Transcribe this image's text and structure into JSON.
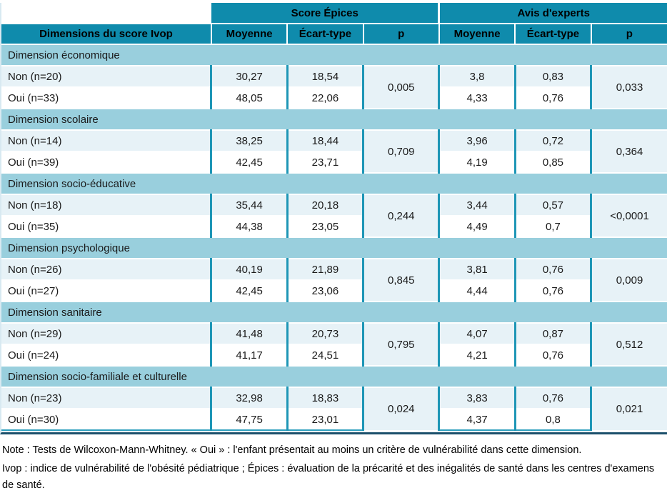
{
  "table": {
    "col_groups": {
      "epices": "Score Épices",
      "avis": "Avis d'experts"
    },
    "headers": {
      "dimension": "Dimensions du score Ivop",
      "moyenne": "Moyenne",
      "ecart_type": "Écart-type",
      "p": "p"
    },
    "sections": [
      {
        "label": "Dimension économique",
        "epices_p": "0,005",
        "avis_p": "0,033",
        "rows": [
          {
            "label": "Non (n=20)",
            "epices_moyenne": "30,27",
            "epices_ecart": "18,54",
            "avis_moyenne": "3,8",
            "avis_ecart": "0,83"
          },
          {
            "label": "Oui (n=33)",
            "epices_moyenne": "48,05",
            "epices_ecart": "22,06",
            "avis_moyenne": "4,33",
            "avis_ecart": "0,76"
          }
        ]
      },
      {
        "label": "Dimension scolaire",
        "epices_p": "0,709",
        "avis_p": "0,364",
        "rows": [
          {
            "label": "Non (n=14)",
            "epices_moyenne": "38,25",
            "epices_ecart": "18,44",
            "avis_moyenne": "3,96",
            "avis_ecart": "0,72"
          },
          {
            "label": "Oui (n=39)",
            "epices_moyenne": "42,45",
            "epices_ecart": "23,71",
            "avis_moyenne": "4,19",
            "avis_ecart": "0,85"
          }
        ]
      },
      {
        "label": "Dimension socio-éducative",
        "epices_p": "0,244",
        "avis_p": "<0,0001",
        "rows": [
          {
            "label": "Non (n=18)",
            "epices_moyenne": "35,44",
            "epices_ecart": "20,18",
            "avis_moyenne": "3,44",
            "avis_ecart": "0,57"
          },
          {
            "label": "Oui (n=35)",
            "epices_moyenne": "44,38",
            "epices_ecart": "23,05",
            "avis_moyenne": "4,49",
            "avis_ecart": "0,7"
          }
        ]
      },
      {
        "label": "Dimension psychologique",
        "epices_p": "0,845",
        "avis_p": "0,009",
        "rows": [
          {
            "label": "Non (n=26)",
            "epices_moyenne": "40,19",
            "epices_ecart": "21,89",
            "avis_moyenne": "3,81",
            "avis_ecart": "0,76"
          },
          {
            "label": "Oui (n=27)",
            "epices_moyenne": "42,45",
            "epices_ecart": "23,06",
            "avis_moyenne": "4,44",
            "avis_ecart": "0,76"
          }
        ]
      },
      {
        "label": "Dimension sanitaire",
        "epices_p": "0,795",
        "avis_p": "0,512",
        "rows": [
          {
            "label": "Non (n=29)",
            "epices_moyenne": "41,48",
            "epices_ecart": "20,73",
            "avis_moyenne": "4,07",
            "avis_ecart": "0,87"
          },
          {
            "label": "Oui (n=24)",
            "epices_moyenne": "41,17",
            "epices_ecart": "24,51",
            "avis_moyenne": "4,21",
            "avis_ecart": "0,76"
          }
        ]
      },
      {
        "label": "Dimension socio-familiale et culturelle",
        "epices_p": "0,024",
        "avis_p": "0,021",
        "rows": [
          {
            "label": "Non (n=23)",
            "epices_moyenne": "32,98",
            "epices_ecart": "18,83",
            "avis_moyenne": "3,83",
            "avis_ecart": "0,76"
          },
          {
            "label": "Oui (n=30)",
            "epices_moyenne": "47,75",
            "epices_ecart": "23,01",
            "avis_moyenne": "4,37",
            "avis_ecart": "0,8"
          }
        ]
      }
    ],
    "notes": [
      "Note : Tests de Wilcoxon-Mann-Whitney. « Oui » : l'enfant présentait au moins un critère de vulnérabilité dans cette dimension.",
      "Ivop : indice de vulnérabilité de l'obésité pédiatrique ; Épices : évaluation de la précarité et des inégalités de santé dans les centres d'examens de santé."
    ]
  },
  "colors": {
    "header_teal": "#0f8bac",
    "section_band": "#99cfdd",
    "row_non_bg": "#e7f2f7",
    "row_oui_bg": "#ffffff",
    "p_cell_bg": "#e0eef5",
    "grid_teal": "#1e96b6",
    "bottom_line_teal": "#2d9fbe",
    "bottom_line_dark": "#1b4f6b"
  }
}
